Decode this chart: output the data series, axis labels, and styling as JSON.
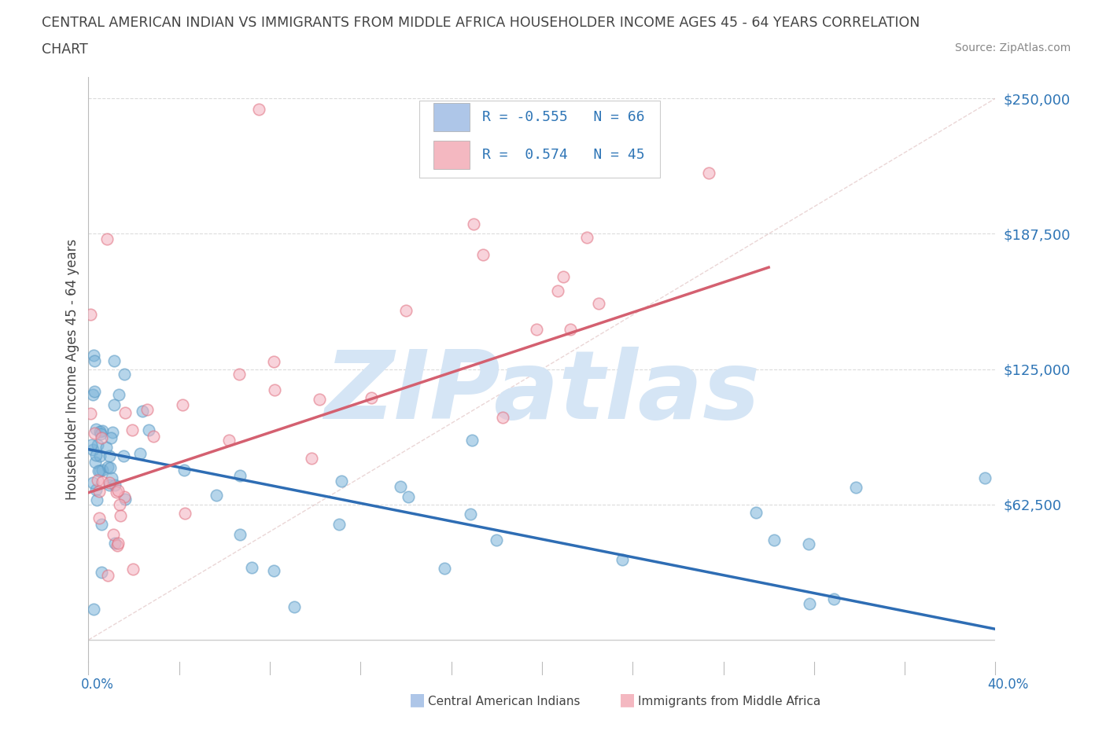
{
  "title_line1": "CENTRAL AMERICAN INDIAN VS IMMIGRANTS FROM MIDDLE AFRICA HOUSEHOLDER INCOME AGES 45 - 64 YEARS CORRELATION",
  "title_line2": "CHART",
  "source": "Source: ZipAtlas.com",
  "ylabel": "Householder Income Ages 45 - 64 years",
  "xlim": [
    0.0,
    0.4
  ],
  "ylim": [
    -10000,
    260000
  ],
  "ytick_vals": [
    62500,
    125000,
    187500,
    250000
  ],
  "ytick_labels": [
    "$62,500",
    "$125,000",
    "$187,500",
    "$250,000"
  ],
  "blue_color": "#7ab3d9",
  "blue_border": "#5a9ac5",
  "pink_color": "#f4b0be",
  "pink_border": "#e07080",
  "blue_line_color": "#2e6db4",
  "pink_line_color": "#d46070",
  "blue_legend_color": "#aec6e8",
  "pink_legend_color": "#f4b8c1",
  "accent_color": "#2e75b6",
  "text_color": "#444444",
  "grid_color": "#cccccc",
  "diag_color": "#ddbbbb",
  "watermark": "ZIPatlas",
  "watermark_color": "#d5e5f5",
  "background_color": "#ffffff",
  "legend_label_blue": "Central American Indians",
  "legend_label_pink": "Immigrants from Middle Africa",
  "blue_trend": [
    0.0,
    0.4,
    88000,
    5000
  ],
  "pink_trend": [
    0.0,
    0.3,
    68000,
    172000
  ],
  "n_blue": 66,
  "n_pink": 45
}
